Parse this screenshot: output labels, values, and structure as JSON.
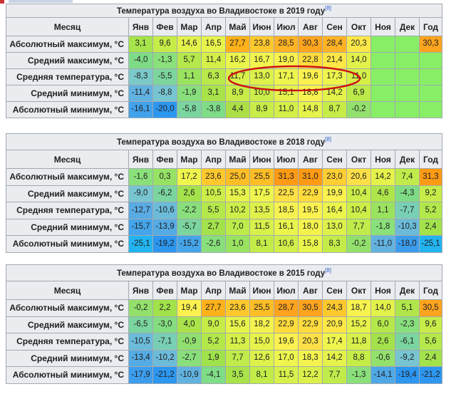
{
  "months": [
    "Янв",
    "Фев",
    "Мар",
    "Апр",
    "Май",
    "Июн",
    "Июл",
    "Авг",
    "Сен",
    "Окт",
    "Ноя",
    "Дек",
    "Год"
  ],
  "month_header": "Месяц",
  "colors": {
    "absent": "#88ee66",
    "annotation": "#cc1111"
  },
  "tables": [
    {
      "title": "Температура воздуха во Владивостоке в 2019 году",
      "ref": "[8]",
      "rows": [
        {
          "label": "Абсолютный максимум, °C",
          "values": [
            "3,1",
            "9,6",
            "14,6",
            "16,5",
            "27,7",
            "23,8",
            "28,5",
            "30,3",
            "28,4",
            "20,3",
            "",
            "",
            "30,3"
          ],
          "colors": [
            "#a7e34b",
            "#c6ec48",
            "#e3f24a",
            "#e8f44b",
            "#ffb21a",
            "#ffc92e",
            "#ffb325",
            "#ffa41e",
            "#ffb325",
            "#fbe748",
            "#88ee66",
            "#88ee66",
            "#ffa41e"
          ]
        },
        {
          "label": "Средний максимум, °C",
          "values": [
            "-4,0",
            "-1,3",
            "5,7",
            "11,4",
            "16,2",
            "16,7",
            "19,0",
            "22,8",
            "21,4",
            "14,0",
            "",
            "",
            ""
          ],
          "colors": [
            "#7fdc86",
            "#8ae07a",
            "#b5e84b",
            "#d5ef48",
            "#ebf54b",
            "#f2f54d",
            "#f9f14e",
            "#ffdc3c",
            "#ffe746",
            "#e3f24a",
            "#88ee66",
            "#88ee66",
            "#88ee66"
          ]
        },
        {
          "label": "Средняя температура, °C",
          "values": [
            "-8,3",
            "-5,5",
            "1,1",
            "6,3",
            "11,7",
            "13,0",
            "17,1",
            "19,6",
            "17,3",
            "11,0",
            "",
            "",
            ""
          ],
          "colors": [
            "#7cc9c9",
            "#7cd69d",
            "#9ae35f",
            "#b9e94a",
            "#d8f04a",
            "#ddf14a",
            "#eef54c",
            "#fbf14f",
            "#eef54c",
            "#d5ef48",
            "#88ee66",
            "#88ee66",
            "#88ee66"
          ]
        },
        {
          "label": "Средний минимум, °C",
          "values": [
            "-11,4",
            "-8,8",
            "-1,9",
            "3,1",
            "8,9",
            "10,0",
            "15,1",
            "18,8",
            "14,2",
            "6,9",
            "",
            "",
            ""
          ],
          "colors": [
            "#62b2e0",
            "#78c5d2",
            "#89df7c",
            "#a8e34a",
            "#c8ec48",
            "#cdee48",
            "#e7f34b",
            "#f8f24f",
            "#e4f24a",
            "#bceb4a",
            "#88ee66",
            "#88ee66",
            "#88ee66"
          ]
        },
        {
          "label": "Абсолютный минимум, °C",
          "values": [
            "-16,1",
            "-20,0",
            "-5,8",
            "-3,8",
            "4,4",
            "8,9",
            "11,0",
            "14,8",
            "8,7",
            "-0,2",
            "",
            "",
            ""
          ],
          "colors": [
            "#42a2ec",
            "#2d96ef",
            "#7bd59e",
            "#7fdc87",
            "#acdf45",
            "#c8ec48",
            "#d5ef48",
            "#e5f34b",
            "#c6ec48",
            "#93e16c",
            "#88ee66",
            "#88ee66",
            "#88ee66"
          ]
        }
      ]
    },
    {
      "title": "Температура воздуха во Владивостоке в 2018 году",
      "ref": "[8]",
      "rows": [
        {
          "label": "Абсолютный максимум, °C",
          "values": [
            "-1,6",
            "0,3",
            "17,2",
            "23,6",
            "25,0",
            "25,5",
            "31,3",
            "31,0",
            "23,0",
            "20,6",
            "14,2",
            "7,4",
            "31,3"
          ],
          "colors": [
            "#8ae07a",
            "#96e265",
            "#eef54c",
            "#ffc92e",
            "#ffbe26",
            "#ffbe26",
            "#ff9a14",
            "#ff9a14",
            "#ffce32",
            "#fde047",
            "#e4f24a",
            "#bfec4a",
            "#ff9a14"
          ]
        },
        {
          "label": "Средний максимум, °C",
          "values": [
            "-9,0",
            "-6,2",
            "2,6",
            "10,5",
            "15,3",
            "17,5",
            "22,5",
            "22,9",
            "19,9",
            "10,4",
            "4,6",
            "-4,3",
            "9,2"
          ],
          "colors": [
            "#78c5d2",
            "#7bd59e",
            "#a4e24b",
            "#cdee48",
            "#e7f34b",
            "#f0f54d",
            "#ffe044",
            "#ffdc3c",
            "#fbf14f",
            "#cdee48",
            "#ade54a",
            "#7fdc86",
            "#c6ec48"
          ]
        },
        {
          "label": "Средняя температура, °C",
          "values": [
            "-12,7",
            "-10,6",
            "-2,2",
            "5,5",
            "10,2",
            "13,5",
            "18,5",
            "19,5",
            "16,4",
            "10,4",
            "1,1",
            "-7,7",
            "5,2"
          ],
          "colors": [
            "#5aabe3",
            "#6bbbd9",
            "#89df7c",
            "#b5e84b",
            "#cdee48",
            "#dff14a",
            "#f7f24f",
            "#fbf14f",
            "#ebf54b",
            "#cdee48",
            "#9ae35f",
            "#79cfb6",
            "#b3e84b"
          ]
        },
        {
          "label": "Средний минимум, °C",
          "values": [
            "-15,7",
            "-13,9",
            "-5,7",
            "2,7",
            "7,0",
            "11,5",
            "16,1",
            "18,0",
            "13,0",
            "7,7",
            "-1,8",
            "-10,3",
            "2,4"
          ],
          "colors": [
            "#45a5ea",
            "#55abe4",
            "#7bd59e",
            "#a4e24b",
            "#bceb4a",
            "#d8f04a",
            "#eaf54b",
            "#f4f34e",
            "#ddf14a",
            "#bfec4a",
            "#8ae07a",
            "#6bbbd9",
            "#a2e24b"
          ]
        },
        {
          "label": "Абсолютный минимум, °C",
          "values": [
            "-25,1",
            "-19,2",
            "-15,2",
            "-2,6",
            "1,0",
            "8,1",
            "10,6",
            "15,8",
            "8,3",
            "-0,2",
            "-11,0",
            "-18,0",
            "-25,1"
          ],
          "colors": [
            "#22b4f0",
            "#2d96ef",
            "#45a5ea",
            "#89df7c",
            "#9ae35f",
            "#c3ec48",
            "#d1ef48",
            "#eaf54b",
            "#c3ec48",
            "#93e16c",
            "#62b2e0",
            "#3d9ded",
            "#22b4f0"
          ]
        }
      ]
    },
    {
      "title": "Температура воздуха во Владивостоке в 2015 году",
      "ref": "[8]",
      "rows": [
        {
          "label": "Абсолютный максимум, °C",
          "values": [
            "-0,2",
            "2,2",
            "19,4",
            "27,7",
            "23,6",
            "25,5",
            "28,7",
            "30,5",
            "24,3",
            "18,7",
            "14,0",
            "5,1",
            "30,5"
          ],
          "colors": [
            "#93e16c",
            "#a2e24b",
            "#fbf14f",
            "#ffb21a",
            "#ffc92e",
            "#ffbe26",
            "#ffa41e",
            "#ffa41e",
            "#ffc92e",
            "#f8f24f",
            "#e3f24a",
            "#b0e64a",
            "#ffa41e"
          ]
        },
        {
          "label": "Средний максимум, °C",
          "values": [
            "-6,5",
            "-3,0",
            "4,0",
            "9,0",
            "15,6",
            "18,2",
            "22,9",
            "22,9",
            "20,9",
            "15,2",
            "6,0",
            "-2,3",
            "9,6"
          ],
          "colors": [
            "#7bd59e",
            "#84dd80",
            "#aae44a",
            "#c6ec48",
            "#e8f44b",
            "#f4f34e",
            "#ffdc3c",
            "#ffdc3c",
            "#ffe746",
            "#e7f34b",
            "#b5e84b",
            "#89df7c",
            "#c8ec48"
          ]
        },
        {
          "label": "Средняя температура, °C",
          "values": [
            "-10,5",
            "-7,1",
            "-0,9",
            "5,2",
            "11,3",
            "15,0",
            "19,6",
            "20,3",
            "17,4",
            "11,8",
            "2,6",
            "-6,1",
            "5,6"
          ],
          "colors": [
            "#6bbbd9",
            "#79cfb6",
            "#91e06f",
            "#b3e84b",
            "#d6f048",
            "#e7f34b",
            "#fbf14f",
            "#fde047",
            "#f0f54d",
            "#d8f04a",
            "#a4e24b",
            "#7bd59e",
            "#b5e84b"
          ]
        },
        {
          "label": "Средний минимум, °C",
          "values": [
            "-13,4",
            "-10,2",
            "-2,7",
            "1,9",
            "7,7",
            "12,6",
            "17,0",
            "18,3",
            "14,2",
            "8,8",
            "-0,6",
            "-9,2",
            "2,4"
          ],
          "colors": [
            "#55abe4",
            "#6bbbd9",
            "#89df7c",
            "#a0e24b",
            "#bfec4a",
            "#ddf14a",
            "#eef54c",
            "#f4f34e",
            "#e4f24a",
            "#c6ec48",
            "#93e16c",
            "#78c5d2",
            "#a2e24b"
          ]
        },
        {
          "label": "Абсолютный минимум, °C",
          "values": [
            "-17,9",
            "-21,2",
            "-10,9",
            "-4,1",
            "3,5",
            "8,1",
            "11,5",
            "12,2",
            "7,7",
            "-1,3",
            "-14,1",
            "-19,4",
            "-21,2"
          ],
          "colors": [
            "#3d9ded",
            "#2d96ef",
            "#62b2e0",
            "#7fdc87",
            "#a8e34a",
            "#c3ec48",
            "#d8f04a",
            "#dbf04a",
            "#bfec4a",
            "#8ae07a",
            "#4fa8e6",
            "#2d96ef",
            "#2d96ef"
          ]
        }
      ]
    }
  ]
}
